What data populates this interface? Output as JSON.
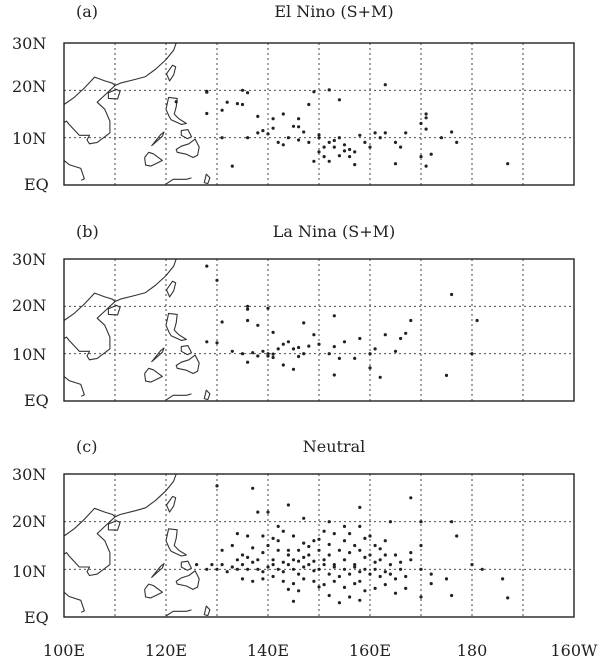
{
  "panels": [
    {
      "tag": "(a)",
      "title": "El Nino (S+M)",
      "y_tick_labels": [
        "30N",
        "20N",
        "10N",
        "EQ"
      ],
      "points": [
        [
          122,
          17.6
        ],
        [
          128,
          19.6
        ],
        [
          128,
          19.8
        ],
        [
          132,
          17.5
        ],
        [
          134,
          17.2
        ],
        [
          135,
          20
        ],
        [
          135,
          17
        ],
        [
          136,
          19.5
        ],
        [
          131,
          15.8
        ],
        [
          128,
          15.1
        ],
        [
          138,
          14.5
        ],
        [
          141,
          14
        ],
        [
          143,
          15
        ],
        [
          146,
          14
        ],
        [
          148,
          17
        ],
        [
          149,
          19.7
        ],
        [
          152,
          20.1
        ],
        [
          154,
          18
        ],
        [
          163,
          21.2
        ],
        [
          170,
          13
        ],
        [
          171,
          14.2
        ],
        [
          171,
          15
        ],
        [
          174,
          10
        ],
        [
          176,
          11.2
        ],
        [
          131,
          10
        ],
        [
          136,
          10
        ],
        [
          138,
          11
        ],
        [
          139,
          11.5
        ],
        [
          140,
          10.8
        ],
        [
          141,
          12
        ],
        [
          142,
          9
        ],
        [
          143,
          8.5
        ],
        [
          144,
          10
        ],
        [
          145,
          12.4
        ],
        [
          146,
          9.5
        ],
        [
          147,
          11.2
        ],
        [
          148,
          9
        ],
        [
          150,
          10
        ],
        [
          151,
          8
        ],
        [
          152,
          9
        ],
        [
          153,
          9.4
        ],
        [
          154,
          10
        ],
        [
          155,
          8.5
        ],
        [
          156,
          7.5
        ],
        [
          157,
          7
        ],
        [
          158,
          10.5
        ],
        [
          159,
          9
        ],
        [
          160,
          8
        ],
        [
          161,
          11
        ],
        [
          162,
          10
        ],
        [
          163,
          11
        ],
        [
          165,
          9
        ],
        [
          166,
          8
        ],
        [
          167,
          11
        ],
        [
          170,
          6
        ],
        [
          171,
          11.8
        ],
        [
          172,
          6.5
        ],
        [
          177,
          9
        ],
        [
          149,
          5
        ],
        [
          150,
          7
        ],
        [
          151,
          6
        ],
        [
          152,
          5
        ],
        [
          153,
          8
        ],
        [
          154,
          6.2
        ],
        [
          155,
          7.2
        ],
        [
          156,
          6
        ],
        [
          157,
          4.3
        ],
        [
          165,
          4.5
        ],
        [
          171,
          4
        ],
        [
          187,
          4.5
        ],
        [
          133,
          4
        ],
        [
          146,
          12.3
        ],
        [
          150,
          10.6
        ]
      ]
    },
    {
      "tag": "(b)",
      "title": "La Nina (S+M)",
      "y_tick_labels": [
        "30N",
        "20N",
        "10N",
        "EQ"
      ],
      "points": [
        [
          130,
          25.5
        ],
        [
          128,
          28.5
        ],
        [
          136,
          20
        ],
        [
          136,
          19.4
        ],
        [
          140,
          19.6
        ],
        [
          131,
          16.7
        ],
        [
          136,
          17
        ],
        [
          138,
          16
        ],
        [
          141,
          14.5
        ],
        [
          147,
          16.5
        ],
        [
          153,
          18
        ],
        [
          158,
          13.2
        ],
        [
          168,
          17
        ],
        [
          176,
          22.5
        ],
        [
          181,
          17
        ],
        [
          128,
          12.5
        ],
        [
          130,
          12.3
        ],
        [
          133,
          10.5
        ],
        [
          135,
          10
        ],
        [
          137,
          10.2
        ],
        [
          138,
          9.5
        ],
        [
          139,
          10.5
        ],
        [
          140,
          9.5
        ],
        [
          140,
          10
        ],
        [
          141,
          9.2
        ],
        [
          142,
          11
        ],
        [
          143,
          12
        ],
        [
          144,
          12.5
        ],
        [
          145,
          11
        ],
        [
          146,
          11.3
        ],
        [
          147,
          10
        ],
        [
          148,
          11.6
        ],
        [
          149,
          14
        ],
        [
          150,
          12
        ],
        [
          152,
          10
        ],
        [
          153,
          11.5
        ],
        [
          154,
          9
        ],
        [
          155,
          12.5
        ],
        [
          157,
          9
        ],
        [
          160,
          10
        ],
        [
          161,
          11
        ],
        [
          163,
          14
        ],
        [
          166,
          13.2
        ],
        [
          167,
          14.3
        ],
        [
          143,
          7.6
        ],
        [
          145,
          6.7
        ],
        [
          153,
          5.5
        ],
        [
          160,
          7
        ],
        [
          162,
          5
        ],
        [
          175,
          5.4
        ],
        [
          180,
          10
        ],
        [
          165,
          10.5
        ],
        [
          136,
          8.2
        ],
        [
          141,
          9.9
        ],
        [
          146,
          9.4
        ]
      ]
    },
    {
      "tag": "(c)",
      "title": "Neutral",
      "y_tick_labels": [
        "30N",
        "20N",
        "10N",
        "EQ"
      ],
      "points": [
        [
          130,
          27.5
        ],
        [
          137,
          27
        ],
        [
          144,
          23.5
        ],
        [
          140,
          22
        ],
        [
          138,
          22
        ],
        [
          158,
          23
        ],
        [
          168,
          25
        ],
        [
          147,
          20.7
        ],
        [
          152,
          20
        ],
        [
          142,
          19
        ],
        [
          143,
          18
        ],
        [
          155,
          19
        ],
        [
          158,
          19
        ],
        [
          164,
          20
        ],
        [
          170,
          20
        ],
        [
          176,
          20
        ],
        [
          177,
          17
        ],
        [
          134,
          17.5
        ],
        [
          136,
          17
        ],
        [
          139,
          17
        ],
        [
          141,
          16.5
        ],
        [
          145,
          17
        ],
        [
          147,
          15.5
        ],
        [
          149,
          16
        ],
        [
          151,
          18
        ],
        [
          153,
          17.5
        ],
        [
          155,
          16
        ],
        [
          157,
          15
        ],
        [
          159,
          16.5
        ],
        [
          161,
          15
        ],
        [
          163,
          16
        ],
        [
          165,
          13
        ],
        [
          168,
          13.5
        ],
        [
          170,
          15
        ],
        [
          180,
          11
        ],
        [
          186,
          8
        ],
        [
          131,
          14
        ],
        [
          133,
          15
        ],
        [
          135,
          13
        ],
        [
          137,
          14.5
        ],
        [
          138,
          12
        ],
        [
          139,
          13.5
        ],
        [
          140,
          15
        ],
        [
          141,
          12
        ],
        [
          142,
          14
        ],
        [
          143,
          11.5
        ],
        [
          144,
          13
        ],
        [
          145,
          12
        ],
        [
          146,
          14
        ],
        [
          147,
          12.5
        ],
        [
          148,
          13
        ],
        [
          149,
          11.7
        ],
        [
          150,
          14
        ],
        [
          151,
          12
        ],
        [
          152,
          13
        ],
        [
          153,
          11
        ],
        [
          154,
          14
        ],
        [
          155,
          12
        ],
        [
          156,
          13.5
        ],
        [
          157,
          11
        ],
        [
          158,
          14
        ],
        [
          159,
          12.5
        ],
        [
          160,
          13
        ],
        [
          161,
          11.5
        ],
        [
          162,
          12
        ],
        [
          163,
          13
        ],
        [
          164,
          11
        ],
        [
          166,
          11.5
        ],
        [
          168,
          12
        ],
        [
          126,
          11
        ],
        [
          128,
          10
        ],
        [
          129,
          11
        ],
        [
          130,
          10
        ],
        [
          131,
          11
        ],
        [
          132,
          9.5
        ],
        [
          133,
          10.5
        ],
        [
          134,
          10
        ],
        [
          135,
          11
        ],
        [
          136,
          10
        ],
        [
          137,
          11.5
        ],
        [
          138,
          10
        ],
        [
          139,
          9.5
        ],
        [
          140,
          10.5
        ],
        [
          141,
          11
        ],
        [
          142,
          10
        ],
        [
          143,
          9.5
        ],
        [
          144,
          11
        ],
        [
          145,
          10
        ],
        [
          146,
          9
        ],
        [
          147,
          10.5
        ],
        [
          148,
          11
        ],
        [
          149,
          9.7
        ],
        [
          150,
          10
        ],
        [
          151,
          11
        ],
        [
          152,
          9
        ],
        [
          153,
          10.5
        ],
        [
          154,
          8.5
        ],
        [
          155,
          10
        ],
        [
          156,
          9
        ],
        [
          157,
          10.5
        ],
        [
          158,
          9.5
        ],
        [
          159,
          10
        ],
        [
          160,
          9
        ],
        [
          161,
          10
        ],
        [
          162,
          8.5
        ],
        [
          163,
          9.5
        ],
        [
          164,
          9
        ],
        [
          165,
          8
        ],
        [
          166,
          10
        ],
        [
          167,
          8.5
        ],
        [
          170,
          10
        ],
        [
          172,
          9
        ],
        [
          175,
          8
        ],
        [
          182,
          10
        ],
        [
          135,
          8
        ],
        [
          137,
          7.5
        ],
        [
          139,
          8
        ],
        [
          141,
          8.5
        ],
        [
          143,
          7.5
        ],
        [
          145,
          7
        ],
        [
          147,
          8
        ],
        [
          149,
          7.5
        ],
        [
          151,
          6.8
        ],
        [
          153,
          7.5
        ],
        [
          155,
          6.2
        ],
        [
          157,
          7
        ],
        [
          159,
          5.5
        ],
        [
          161,
          6
        ],
        [
          163,
          6.8
        ],
        [
          165,
          5
        ],
        [
          167,
          6
        ],
        [
          170,
          4.2
        ],
        [
          172,
          7
        ],
        [
          176,
          4.5
        ],
        [
          187,
          4
        ],
        [
          146,
          5.5
        ],
        [
          150,
          6.3
        ],
        [
          152,
          4.5
        ],
        [
          154,
          3
        ],
        [
          156,
          4.2
        ],
        [
          158,
          3.5
        ],
        [
          144,
          14
        ],
        [
          146,
          11.7
        ],
        [
          148,
          14.8
        ],
        [
          150,
          16.3
        ],
        [
          142,
          16
        ],
        [
          152,
          15.2
        ],
        [
          156,
          17.5
        ],
        [
          160,
          17
        ],
        [
          134,
          12
        ],
        [
          136,
          12.5
        ],
        [
          144,
          5.8
        ],
        [
          158,
          7.5
        ],
        [
          162,
          14.3
        ],
        [
          145,
          3.3
        ]
      ]
    }
  ],
  "x_tick_labels": [
    "100E",
    "120E",
    "140E",
    "160E",
    "180",
    "160W"
  ]
}
